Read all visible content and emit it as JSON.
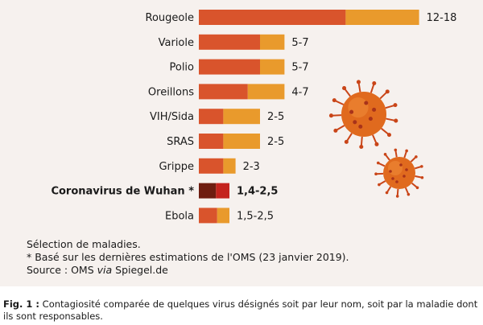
{
  "chart_data": {
    "type": "bar",
    "stacked": true,
    "categories": [
      "Rougeole",
      "Variole",
      "Polio",
      "Oreillons",
      "VIH/Sida",
      "SRAS",
      "Grippe",
      "Coronavirus de Wuhan *",
      "Ebola"
    ],
    "ranges": [
      {
        "label": "Rougeole",
        "min": 12,
        "max": 18,
        "text": "12-18",
        "highlight": false
      },
      {
        "label": "Variole",
        "min": 5,
        "max": 7,
        "text": "5-7",
        "highlight": false
      },
      {
        "label": "Polio",
        "min": 5,
        "max": 7,
        "text": "5-7",
        "highlight": false
      },
      {
        "label": "Oreillons",
        "min": 4,
        "max": 7,
        "text": "4-7",
        "highlight": false
      },
      {
        "label": "VIH/Sida",
        "min": 2,
        "max": 5,
        "text": "2-5",
        "highlight": false
      },
      {
        "label": "SRAS",
        "min": 2,
        "max": 5,
        "text": "2-5",
        "highlight": false
      },
      {
        "label": "Grippe",
        "min": 2,
        "max": 3,
        "text": "2-3",
        "highlight": false
      },
      {
        "label": "Coronavirus de Wuhan *",
        "min": 1.4,
        "max": 2.5,
        "text": "1,4-2,5",
        "highlight": true
      },
      {
        "label": "Ebola",
        "min": 1.5,
        "max": 2.5,
        "text": "1,5-2,5",
        "highlight": false
      }
    ],
    "colors": {
      "min": "#d9542c",
      "range": "#e99a2c",
      "min_highlight": "#6e1d10",
      "range_highlight": "#c4231d",
      "background": "#f6f1ee",
      "virus_body": "#e06a1e",
      "virus_spike": "#c94518"
    },
    "grid": false,
    "legend": "none"
  },
  "notes": {
    "line1": "Sélection de maladies.",
    "line2": "* Basé sur les dernières estimations de l'OMS (23 janvier 2019).",
    "source_prefix": "Source : OMS ",
    "source_via": "via",
    "source_suffix": " Spiegel.de"
  },
  "caption": {
    "label": "Fig. 1 :",
    "text": " Contagiosité comparée de quelques virus désignés soit par leur nom, soit par la maladie dont ils sont responsables."
  },
  "icons": [
    "virus-icon-large",
    "virus-icon-small"
  ]
}
